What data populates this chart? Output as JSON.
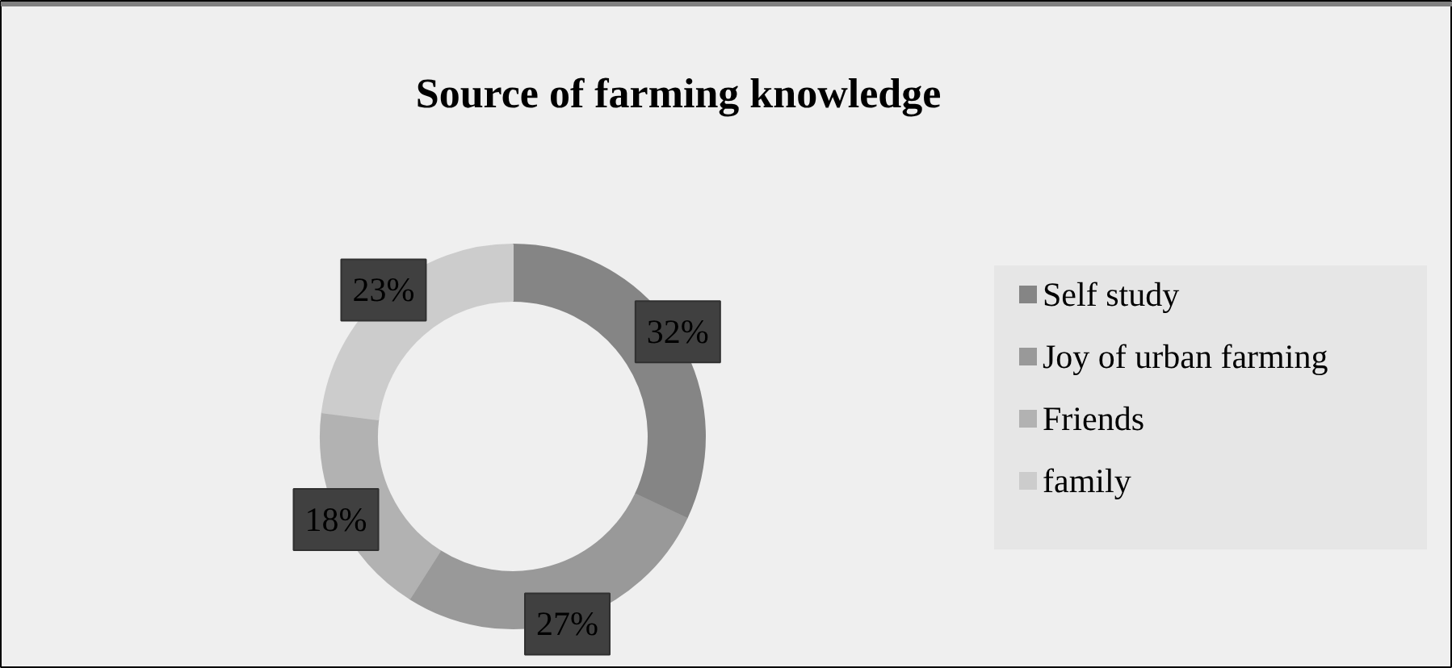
{
  "chart_data": {
    "type": "donut",
    "title": "Source of farming knowledge",
    "categories": [
      "Self study",
      "Joy of urban farming",
      "Friends",
      "family"
    ],
    "values": [
      32,
      27,
      18,
      23
    ],
    "colors": [
      "#858585",
      "#999999",
      "#b2b2b2",
      "#cccccc"
    ],
    "value_labels": [
      "32%",
      "27%",
      "18%",
      "23%"
    ],
    "legend": "right"
  }
}
